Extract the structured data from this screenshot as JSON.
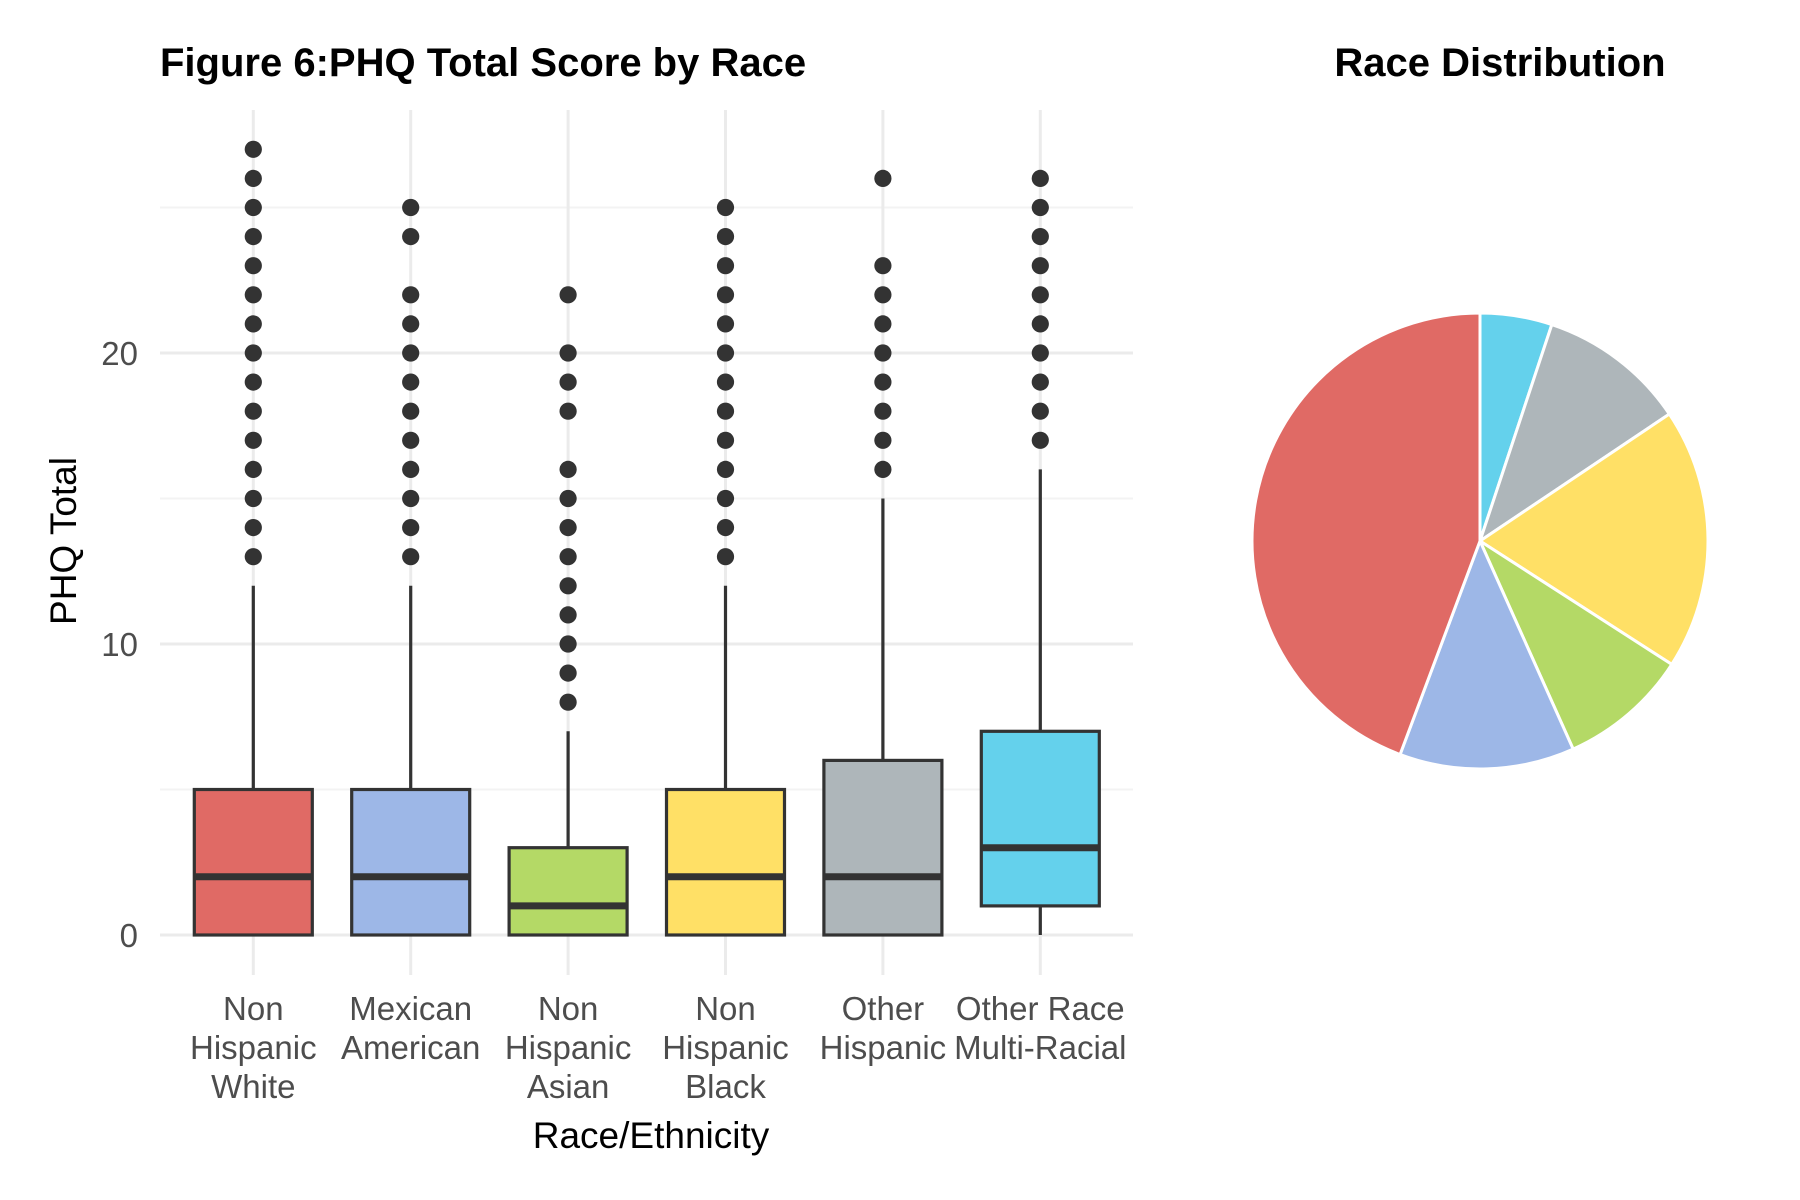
{
  "chart_data": [
    {
      "type": "box",
      "title": "Figure 6:PHQ Total Score by Race",
      "xlabel": "Race/Ethnicity",
      "ylabel": "PHQ Total",
      "ylim": [
        -1,
        27.5
      ],
      "yticks": [
        0,
        10,
        20
      ],
      "grid": true,
      "categories": [
        {
          "label_lines": [
            "Non",
            "Hispanic",
            "White"
          ],
          "color": "#E06A65",
          "whisker_low": 0,
          "q1": 0,
          "median": 2,
          "q3": 5,
          "whisker_high": 12,
          "outliers": [
            13,
            14,
            15,
            16,
            17,
            18,
            19,
            20,
            21,
            22,
            23,
            24,
            25,
            26,
            27
          ]
        },
        {
          "label_lines": [
            "Mexican",
            "American"
          ],
          "color": "#9DB7E7",
          "whisker_low": 0,
          "q1": 0,
          "median": 2,
          "q3": 5,
          "whisker_high": 12,
          "outliers": [
            13,
            14,
            15,
            16,
            17,
            18,
            19,
            20,
            21,
            22,
            24,
            25
          ]
        },
        {
          "label_lines": [
            "Non",
            "Hispanic",
            "Asian"
          ],
          "color": "#B4D966",
          "whisker_low": 0,
          "q1": 0,
          "median": 1,
          "q3": 3,
          "whisker_high": 7,
          "outliers": [
            8,
            9,
            10,
            11,
            12,
            13,
            14,
            15,
            16,
            18,
            19,
            20,
            22
          ]
        },
        {
          "label_lines": [
            "Non",
            "Hispanic",
            "Black"
          ],
          "color": "#FFE066",
          "whisker_low": 0,
          "q1": 0,
          "median": 2,
          "q3": 5,
          "whisker_high": 12,
          "outliers": [
            13,
            14,
            15,
            16,
            17,
            18,
            19,
            20,
            21,
            22,
            23,
            24,
            25
          ]
        },
        {
          "label_lines": [
            "Other",
            "Hispanic"
          ],
          "color": "#AEB6BA",
          "whisker_low": 0,
          "q1": 0,
          "median": 2,
          "q3": 6,
          "whisker_high": 15,
          "outliers": [
            16,
            17,
            18,
            19,
            20,
            21,
            22,
            23,
            26
          ]
        },
        {
          "label_lines": [
            "Other Race",
            "Multi-Racial"
          ],
          "color": "#64D1EC",
          "whisker_low": 0,
          "q1": 1,
          "median": 3,
          "q3": 7,
          "whisker_high": 16,
          "outliers": [
            17,
            18,
            19,
            20,
            21,
            22,
            23,
            24,
            25,
            26
          ]
        }
      ]
    },
    {
      "type": "pie",
      "title": "Race Distribution",
      "start": "12 o'clock",
      "direction": "clockwise",
      "slices": [
        {
          "value": 5.1,
          "color": "#64D1EC"
        },
        {
          "value": 10.5,
          "color": "#AEB6BA"
        },
        {
          "value": 18.5,
          "color": "#FFE066"
        },
        {
          "value": 9.2,
          "color": "#B4D966"
        },
        {
          "value": 12.4,
          "color": "#9DB7E7"
        },
        {
          "value": 44.3,
          "color": "#E06A65"
        }
      ]
    }
  ]
}
